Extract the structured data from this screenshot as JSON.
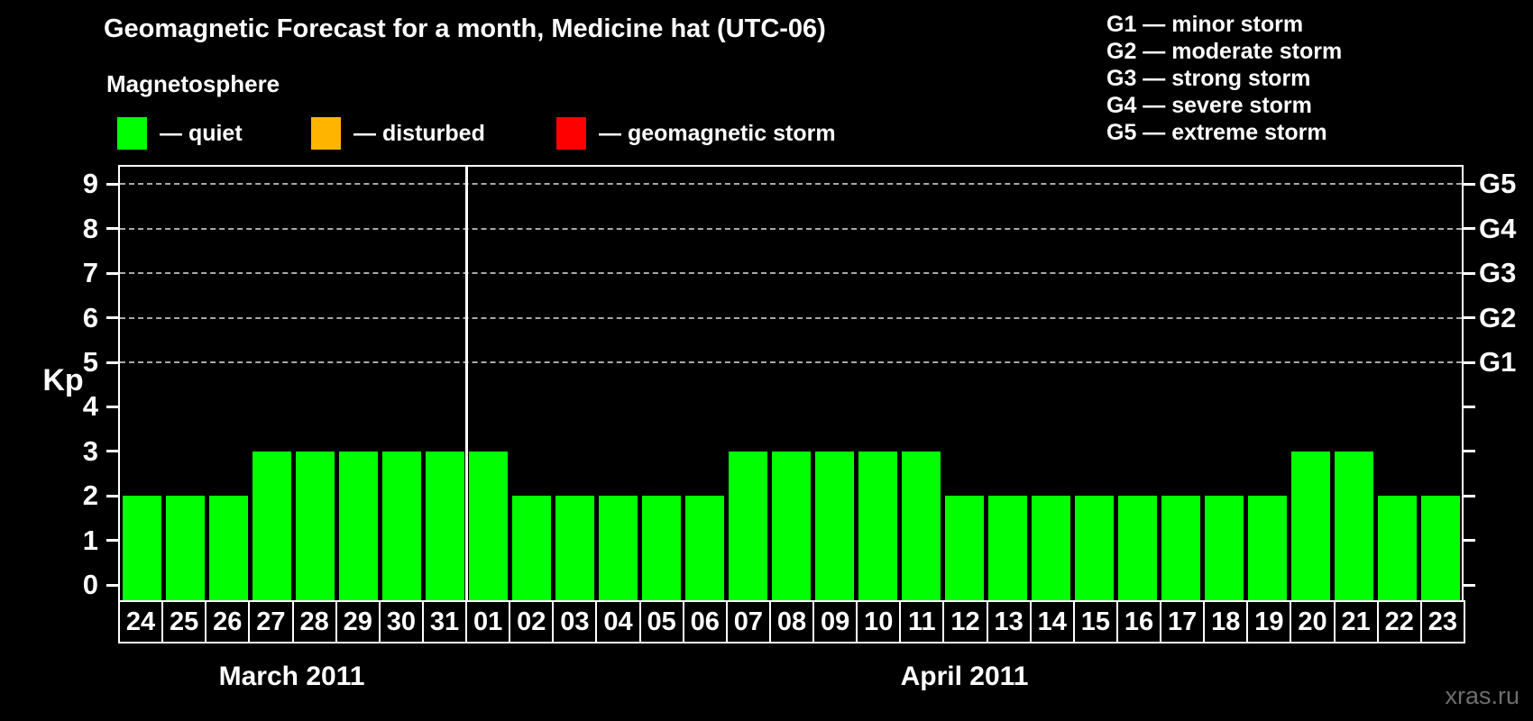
{
  "title": "Geomagnetic Forecast for a month, Medicine hat (UTC-06)",
  "subtitle": "Magnetosphere",
  "watermark": "xras.ru",
  "colors": {
    "quiet": "#00ff00",
    "disturbed": "#ffb400",
    "storm": "#ff0000",
    "grid": "#a9a9a9",
    "axis": "#ffffff",
    "text": "#ffffff",
    "watermark": "#6e6e6e",
    "background": "#000000"
  },
  "legend": {
    "items": [
      {
        "key": "quiet",
        "label": "— quiet",
        "color": "#00ff00",
        "x": 130
      },
      {
        "key": "disturbed",
        "label": "— disturbed",
        "color": "#ffb400",
        "x": 345
      },
      {
        "key": "storm",
        "label": "— geomagnetic storm",
        "color": "#ff0000",
        "x": 617
      }
    ]
  },
  "g_scale_legend": {
    "g1": "G1 — minor storm",
    "g2": "G2 — moderate storm",
    "g3": "G3 — strong storm",
    "g4": "G4 — severe storm",
    "g5": "G5 — extreme storm"
  },
  "chart_data": {
    "type": "bar",
    "title": "Geomagnetic Forecast for a month, Medicine hat (UTC-06)",
    "ylabel": "Kp",
    "ylim": [
      0,
      9.4
    ],
    "yticks": [
      0,
      1,
      2,
      3,
      4,
      5,
      6,
      7,
      8,
      9
    ],
    "gridlines_at": [
      5,
      6,
      7,
      8,
      9
    ],
    "grid": "dashed horizontal lines only at Kp 5-9",
    "legend_position": "top",
    "right_axis": [
      {
        "kp": 5,
        "label": "G1"
      },
      {
        "kp": 6,
        "label": "G2"
      },
      {
        "kp": 7,
        "label": "G3"
      },
      {
        "kp": 8,
        "label": "G4"
      },
      {
        "kp": 9,
        "label": "G5"
      }
    ],
    "months": [
      {
        "label": "March 2011",
        "days": 8
      },
      {
        "label": "April 2011",
        "days": 23
      }
    ],
    "categories": [
      "24",
      "25",
      "26",
      "27",
      "28",
      "29",
      "30",
      "31",
      "01",
      "02",
      "03",
      "04",
      "05",
      "06",
      "07",
      "08",
      "09",
      "10",
      "11",
      "12",
      "13",
      "14",
      "15",
      "16",
      "17",
      "18",
      "19",
      "20",
      "21",
      "22",
      "23"
    ],
    "values": [
      2,
      2,
      2,
      3,
      3,
      3,
      3,
      3,
      3,
      2,
      2,
      2,
      2,
      2,
      3,
      3,
      3,
      3,
      3,
      2,
      2,
      2,
      2,
      2,
      2,
      2,
      2,
      3,
      3,
      2,
      2
    ],
    "statuses": [
      "quiet",
      "quiet",
      "quiet",
      "quiet",
      "quiet",
      "quiet",
      "quiet",
      "quiet",
      "quiet",
      "quiet",
      "quiet",
      "quiet",
      "quiet",
      "quiet",
      "quiet",
      "quiet",
      "quiet",
      "quiet",
      "quiet",
      "quiet",
      "quiet",
      "quiet",
      "quiet",
      "quiet",
      "quiet",
      "quiet",
      "quiet",
      "quiet",
      "quiet",
      "quiet",
      "quiet"
    ]
  }
}
